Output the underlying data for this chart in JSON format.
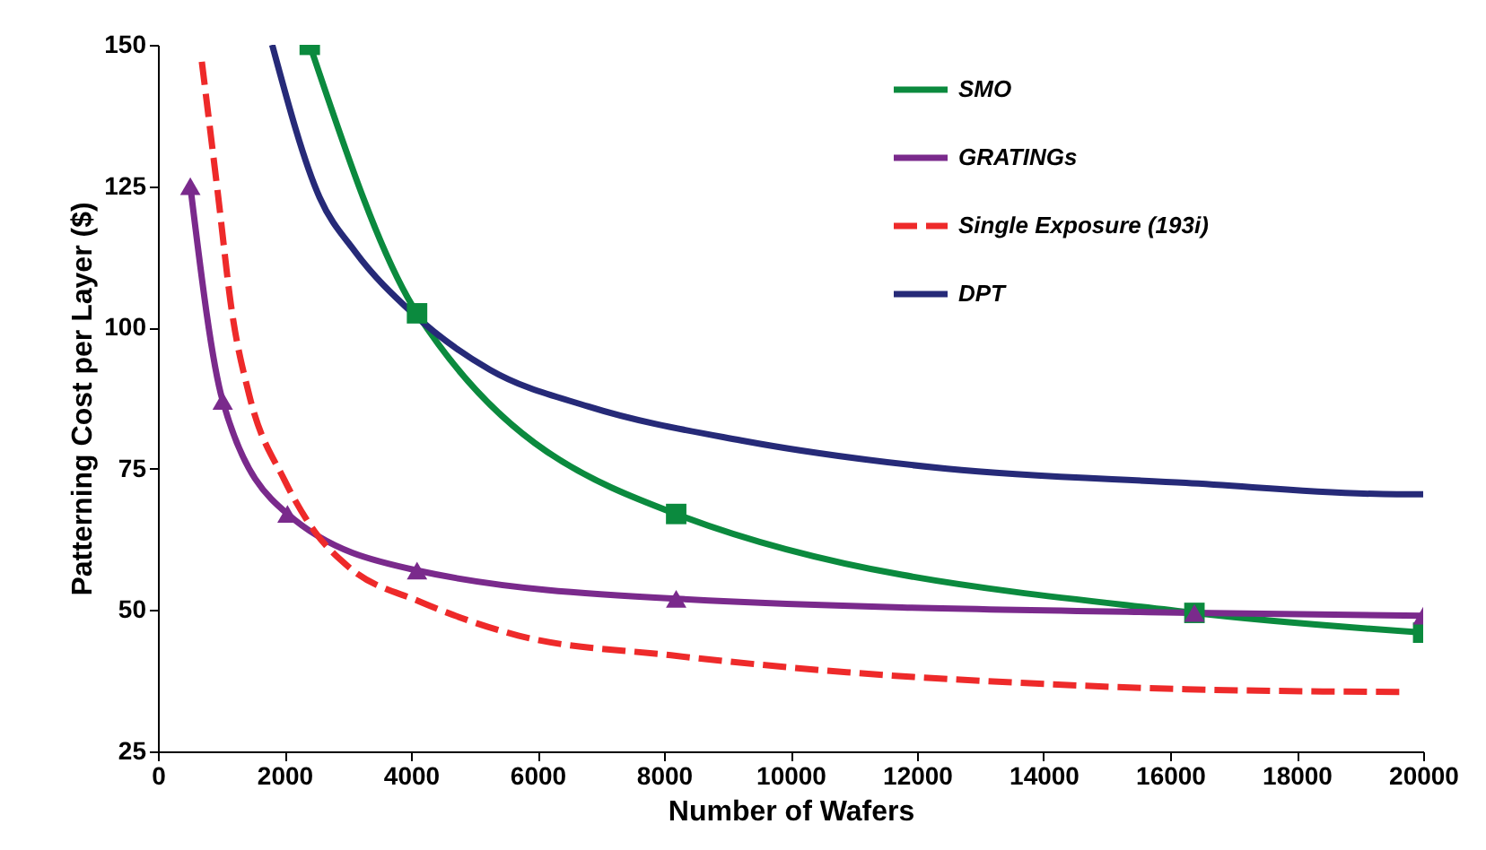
{
  "chart_data": {
    "type": "line",
    "xlabel": "Number of Wafers",
    "ylabel": "Patterning Cost per Layer ($)",
    "xlim": [
      0,
      20000
    ],
    "xticks": [
      0,
      2000,
      4000,
      6000,
      8000,
      10000,
      12000,
      14000,
      16000,
      18000,
      20000
    ],
    "ylim": [
      25,
      150
    ],
    "yticks": [
      25,
      50,
      75,
      100,
      125,
      150
    ],
    "grid": false,
    "legend": "top right",
    "series": [
      {
        "name": "SMO",
        "color": "#0b8a3e",
        "marker": "square",
        "line_style": "solid",
        "x": [
          2400,
          4096,
          8192,
          16384,
          20000
        ],
        "values": [
          150,
          102.5,
          67,
          49.5,
          46
        ]
      },
      {
        "name": "GRATINGs",
        "color": "#7a2a8c",
        "marker": "triangle",
        "line_style": "solid",
        "x": [
          512,
          1024,
          2048,
          4096,
          8192,
          16384,
          20000
        ],
        "values": [
          125,
          87,
          67,
          57,
          52,
          49.5,
          49
        ]
      },
      {
        "name": "Single Exposure (193i)",
        "color": "#ee2a2a",
        "marker": "none",
        "line_style": "dashed",
        "x": [
          694,
          944,
          1167,
          1444,
          2000,
          2472,
          3028,
          4139,
          5694,
          8111,
          10889,
          13861,
          16250,
          19694
        ],
        "values": [
          147,
          124,
          103,
          88,
          73,
          64,
          57.5,
          51.5,
          45.5,
          42,
          39,
          37,
          36,
          35.5
        ]
      },
      {
        "name": "DPT",
        "color": "#262a78",
        "marker": "none",
        "line_style": "solid",
        "x": [
          1806,
          2556,
          3111,
          4028,
          5250,
          6806,
          9222,
          12472,
          16250,
          19583,
          20000
        ],
        "values": [
          150,
          123,
          113.5,
          102.5,
          92.5,
          86,
          80,
          75,
          72.5,
          70.5,
          70.5
        ]
      }
    ]
  }
}
